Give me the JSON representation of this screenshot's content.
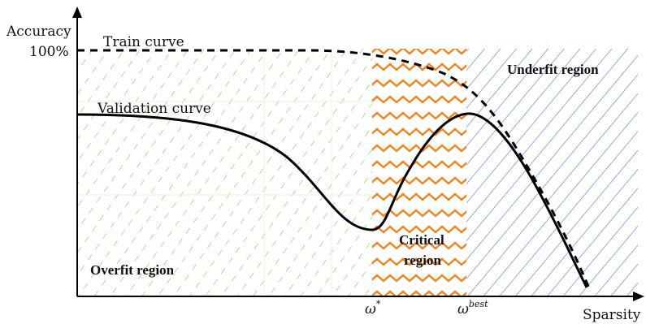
{
  "axes": {
    "y_label": "Accuracy",
    "y_tick": "100%",
    "x_label": "Sparsity",
    "x_tick_star": "ω",
    "x_tick_star_sup": "*",
    "x_tick_best": "ω",
    "x_tick_best_sup": "best"
  },
  "curves": {
    "train_label": "Train curve",
    "validation_label": "Validation curve"
  },
  "regions": {
    "overfit": "Overfit region",
    "critical_line1": "Critical",
    "critical_line2": "region",
    "underfit": "Underfit region"
  },
  "colors": {
    "overfit_hatch": "#8cd15a",
    "critical_zigzag": "#f5821f",
    "underfit_hatch": "#5b8fd6",
    "curve": "#000000"
  }
}
